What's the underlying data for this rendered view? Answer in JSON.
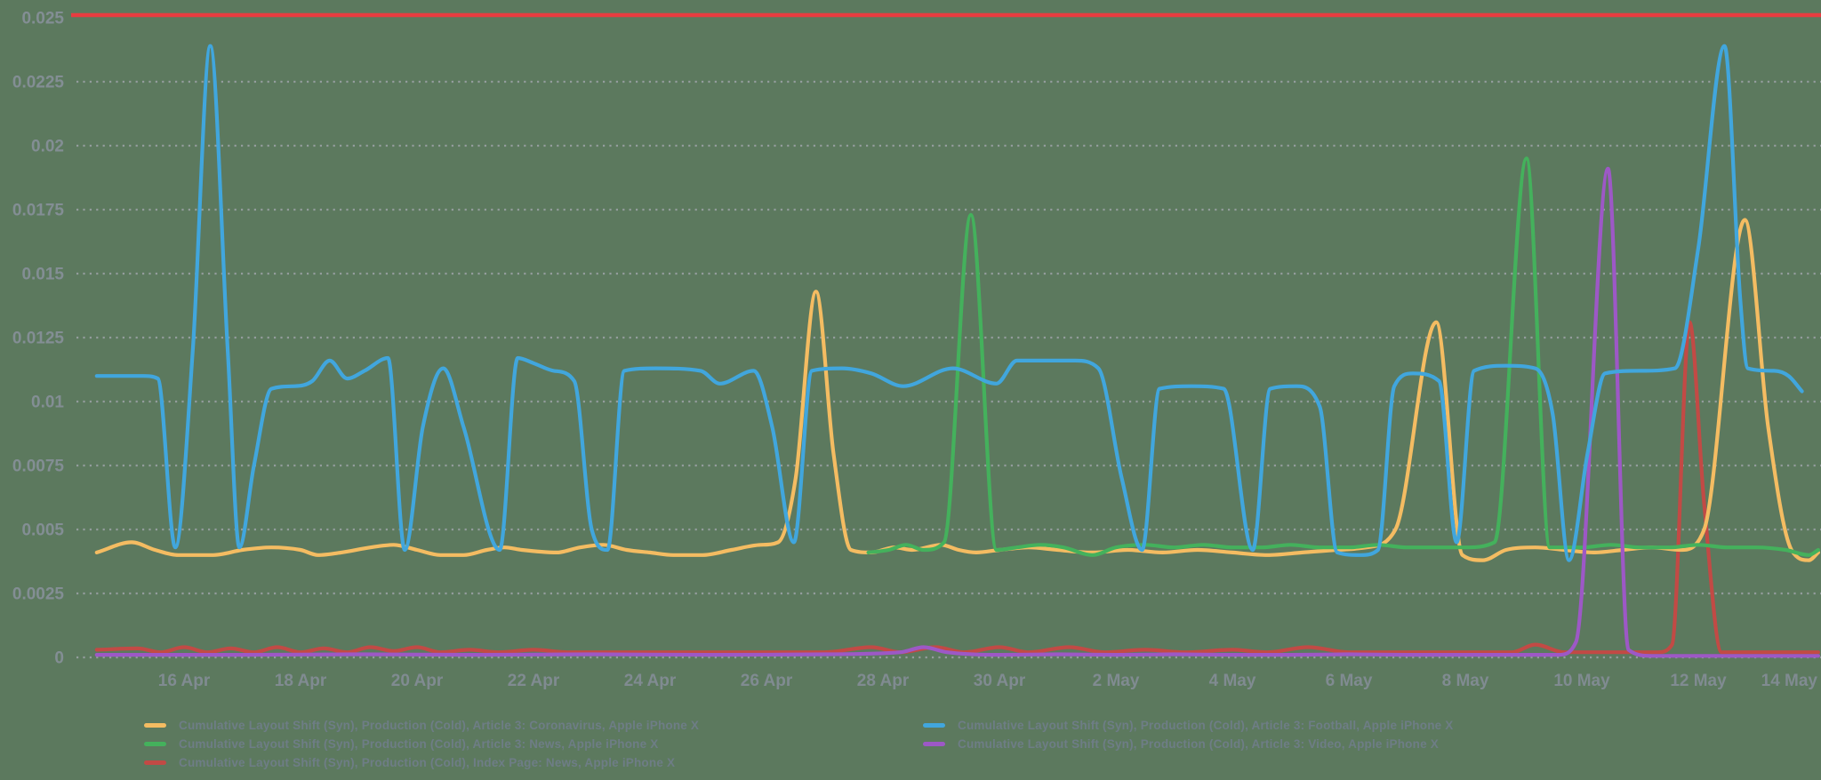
{
  "page": {
    "background_color": "#5c795e",
    "grid_color": "#9aa0a3",
    "axis_label_color": "#828d93",
    "legend_text_color": "#6e7d86"
  },
  "chart_data": {
    "type": "line",
    "title": "",
    "xlabel": "",
    "ylabel": "",
    "grid": "dotted-horizontal",
    "legend_position": "bottom-two-columns",
    "x_unit": "days since 15 Apr",
    "x_domain": [
      -0.55,
      29.1
    ],
    "x_ticks": [
      {
        "day": 1,
        "label": "16 Apr"
      },
      {
        "day": 3,
        "label": "18 Apr"
      },
      {
        "day": 5,
        "label": "20 Apr"
      },
      {
        "day": 7,
        "label": "22 Apr"
      },
      {
        "day": 9,
        "label": "24 Apr"
      },
      {
        "day": 11,
        "label": "26 Apr"
      },
      {
        "day": 13,
        "label": "28 Apr"
      },
      {
        "day": 15,
        "label": "30 Apr"
      },
      {
        "day": 17,
        "label": "2 May"
      },
      {
        "day": 19,
        "label": "4 May"
      },
      {
        "day": 21,
        "label": "6 May"
      },
      {
        "day": 23,
        "label": "8 May"
      },
      {
        "day": 25,
        "label": "10 May"
      },
      {
        "day": 27,
        "label": "12 May"
      },
      {
        "day": 29,
        "label": "14 May"
      }
    ],
    "ylim": [
      0,
      0.025
    ],
    "y_ticks": [
      {
        "value": 0,
        "label": "0"
      },
      {
        "value": 0.0025,
        "label": "0.0025"
      },
      {
        "value": 0.005,
        "label": "0.005"
      },
      {
        "value": 0.0075,
        "label": "0.0075"
      },
      {
        "value": 0.01,
        "label": "0.01"
      },
      {
        "value": 0.0125,
        "label": "0.0125"
      },
      {
        "value": 0.015,
        "label": "0.015"
      },
      {
        "value": 0.0175,
        "label": "0.0175"
      },
      {
        "value": 0.02,
        "label": "0.02"
      },
      {
        "value": 0.0225,
        "label": "0.0225"
      },
      {
        "value": 0.025,
        "label": "0.025"
      }
    ],
    "budget_line": {
      "value": 0.025,
      "color": "#e93c40",
      "style": "solid"
    },
    "draw_order": [
      4,
      0,
      2,
      3,
      1
    ],
    "series": [
      {
        "name": "Cumulative Layout Shift (Syn), Production (Cold), Article 3: Coronavirus, Apple iPhone X",
        "color": "#f4bc62",
        "points": [
          [
            -0.5,
            0.0041
          ],
          [
            0.1,
            0.0045
          ],
          [
            0.5,
            0.0042
          ],
          [
            0.9,
            0.004
          ],
          [
            1.5,
            0.004
          ],
          [
            2.0,
            0.0042
          ],
          [
            2.5,
            0.0043
          ],
          [
            3.0,
            0.0042
          ],
          [
            3.3,
            0.004
          ],
          [
            3.7,
            0.0041
          ],
          [
            4.2,
            0.0043
          ],
          [
            4.6,
            0.0044
          ],
          [
            5.0,
            0.0042
          ],
          [
            5.4,
            0.004
          ],
          [
            5.8,
            0.004
          ],
          [
            6.2,
            0.0042
          ],
          [
            6.5,
            0.0043
          ],
          [
            6.8,
            0.0042
          ],
          [
            7.4,
            0.0041
          ],
          [
            7.8,
            0.0043
          ],
          [
            8.2,
            0.0044
          ],
          [
            8.6,
            0.0042
          ],
          [
            9.0,
            0.0041
          ],
          [
            9.4,
            0.004
          ],
          [
            9.9,
            0.004
          ],
          [
            10.4,
            0.0042
          ],
          [
            10.9,
            0.0044
          ],
          [
            11.2,
            0.0045
          ],
          [
            11.5,
            0.007
          ],
          [
            11.85,
            0.0143
          ],
          [
            12.15,
            0.008
          ],
          [
            12.45,
            0.0042
          ],
          [
            12.8,
            0.0041
          ],
          [
            13.2,
            0.0043
          ],
          [
            13.5,
            0.0042
          ],
          [
            14.0,
            0.0044
          ],
          [
            14.3,
            0.0042
          ],
          [
            14.6,
            0.0041
          ],
          [
            15.0,
            0.0042
          ],
          [
            15.5,
            0.0043
          ],
          [
            16.0,
            0.0042
          ],
          [
            16.6,
            0.0041
          ],
          [
            17.2,
            0.0042
          ],
          [
            17.8,
            0.0041
          ],
          [
            18.4,
            0.0042
          ],
          [
            19.0,
            0.0041
          ],
          [
            19.6,
            0.004
          ],
          [
            20.2,
            0.0041
          ],
          [
            20.8,
            0.0042
          ],
          [
            21.3,
            0.0043
          ],
          [
            21.8,
            0.005
          ],
          [
            22.5,
            0.0131
          ],
          [
            22.95,
            0.004
          ],
          [
            23.3,
            0.0038
          ],
          [
            23.7,
            0.0042
          ],
          [
            24.2,
            0.0043
          ],
          [
            24.7,
            0.0042
          ],
          [
            25.2,
            0.0041
          ],
          [
            25.7,
            0.0042
          ],
          [
            26.2,
            0.0043
          ],
          [
            26.7,
            0.0042
          ],
          [
            27.1,
            0.005
          ],
          [
            27.8,
            0.0171
          ],
          [
            28.2,
            0.009
          ],
          [
            28.6,
            0.0042
          ],
          [
            28.9,
            0.0038
          ],
          [
            29.06,
            0.0041
          ]
        ]
      },
      {
        "name": "Cumulative Layout Shift (Syn), Production (Cold), Article 3: Football, Apple iPhone X",
        "color": "#41a6dd",
        "points": [
          [
            -0.5,
            0.011
          ],
          [
            0.3,
            0.011
          ],
          [
            0.55,
            0.0109
          ],
          [
            0.85,
            0.0043
          ],
          [
            1.15,
            0.012
          ],
          [
            1.45,
            0.0239
          ],
          [
            1.75,
            0.012
          ],
          [
            1.95,
            0.0043
          ],
          [
            2.2,
            0.0075
          ],
          [
            2.5,
            0.0105
          ],
          [
            2.9,
            0.0106
          ],
          [
            3.2,
            0.0108
          ],
          [
            3.5,
            0.0116
          ],
          [
            3.8,
            0.0109
          ],
          [
            4.1,
            0.0112
          ],
          [
            4.5,
            0.0117
          ],
          [
            4.79,
            0.0042
          ],
          [
            5.1,
            0.009
          ],
          [
            5.45,
            0.0113
          ],
          [
            5.8,
            0.009
          ],
          [
            6.42,
            0.0042
          ],
          [
            6.73,
            0.0117
          ],
          [
            7.0,
            0.0115
          ],
          [
            7.35,
            0.0112
          ],
          [
            7.7,
            0.0108
          ],
          [
            8.0,
            0.005
          ],
          [
            8.27,
            0.0042
          ],
          [
            8.56,
            0.0112
          ],
          [
            9.1,
            0.0113
          ],
          [
            9.87,
            0.0112
          ],
          [
            10.2,
            0.0107
          ],
          [
            10.78,
            0.0112
          ],
          [
            11.1,
            0.009
          ],
          [
            11.47,
            0.0045
          ],
          [
            11.78,
            0.0112
          ],
          [
            12.3,
            0.0113
          ],
          [
            12.8,
            0.0111
          ],
          [
            13.35,
            0.0106
          ],
          [
            14.2,
            0.0113
          ],
          [
            14.95,
            0.0107
          ],
          [
            15.3,
            0.0116
          ],
          [
            16.3,
            0.0116
          ],
          [
            16.7,
            0.0113
          ],
          [
            17.1,
            0.007
          ],
          [
            17.45,
            0.0042
          ],
          [
            17.75,
            0.0105
          ],
          [
            18.3,
            0.0106
          ],
          [
            18.85,
            0.0105
          ],
          [
            19.35,
            0.0042
          ],
          [
            19.65,
            0.0105
          ],
          [
            20.1,
            0.0106
          ],
          [
            20.5,
            0.0098
          ],
          [
            20.8,
            0.0041
          ],
          [
            21.2,
            0.004
          ],
          [
            21.5,
            0.0042
          ],
          [
            21.78,
            0.0106
          ],
          [
            22.1,
            0.0111
          ],
          [
            22.55,
            0.0108
          ],
          [
            22.85,
            0.0045
          ],
          [
            23.15,
            0.0112
          ],
          [
            23.7,
            0.0114
          ],
          [
            24.2,
            0.0113
          ],
          [
            24.5,
            0.0095
          ],
          [
            24.78,
            0.0038
          ],
          [
            25.1,
            0.008
          ],
          [
            25.4,
            0.0111
          ],
          [
            26.0,
            0.0112
          ],
          [
            26.6,
            0.0113
          ],
          [
            27.0,
            0.016
          ],
          [
            27.45,
            0.0239
          ],
          [
            27.72,
            0.014
          ],
          [
            27.85,
            0.0113
          ],
          [
            28.3,
            0.0112
          ],
          [
            28.55,
            0.011
          ],
          [
            28.78,
            0.0104
          ]
        ]
      },
      {
        "name": "Cumulative Layout Shift (Syn), Production (Cold), Article 3: News, Apple iPhone X",
        "color": "#44b15c",
        "points": [
          [
            12.75,
            0.0041
          ],
          [
            13.1,
            0.0042
          ],
          [
            13.4,
            0.0044
          ],
          [
            13.7,
            0.0042
          ],
          [
            14.05,
            0.0045
          ],
          [
            14.51,
            0.0173
          ],
          [
            14.95,
            0.0042
          ],
          [
            15.3,
            0.0043
          ],
          [
            15.7,
            0.0044
          ],
          [
            16.1,
            0.0043
          ],
          [
            16.6,
            0.004
          ],
          [
            17.0,
            0.0043
          ],
          [
            17.5,
            0.0044
          ],
          [
            18.0,
            0.0043
          ],
          [
            18.5,
            0.0044
          ],
          [
            19.0,
            0.0043
          ],
          [
            19.5,
            0.0043
          ],
          [
            20.0,
            0.0044
          ],
          [
            20.5,
            0.0043
          ],
          [
            21.0,
            0.0043
          ],
          [
            21.5,
            0.0044
          ],
          [
            22.0,
            0.0043
          ],
          [
            22.5,
            0.0043
          ],
          [
            23.0,
            0.0043
          ],
          [
            23.5,
            0.0045
          ],
          [
            24.05,
            0.0195
          ],
          [
            24.45,
            0.0043
          ],
          [
            25.0,
            0.0043
          ],
          [
            25.5,
            0.0044
          ],
          [
            26.0,
            0.0043
          ],
          [
            26.5,
            0.0043
          ],
          [
            27.0,
            0.0044
          ],
          [
            27.5,
            0.0043
          ],
          [
            28.0,
            0.0043
          ],
          [
            28.5,
            0.0042
          ],
          [
            28.9,
            0.004
          ],
          [
            29.06,
            0.0042
          ]
        ]
      },
      {
        "name": "Cumulative Layout Shift (Syn), Production (Cold), Article 3: Video, Apple iPhone X",
        "color": "#9d58c6",
        "points": [
          [
            -0.5,
            0.0001
          ],
          [
            2,
            0.0001
          ],
          [
            4,
            0.00012
          ],
          [
            6,
            0.0001
          ],
          [
            8,
            0.00012
          ],
          [
            10,
            0.0001
          ],
          [
            12,
            0.00012
          ],
          [
            13.3,
            0.0002
          ],
          [
            13.7,
            0.0004
          ],
          [
            14.1,
            0.0002
          ],
          [
            15,
            0.0001
          ],
          [
            16,
            0.00012
          ],
          [
            17,
            0.0001
          ],
          [
            18,
            0.00012
          ],
          [
            19,
            0.0001
          ],
          [
            20,
            0.0001
          ],
          [
            21,
            0.00012
          ],
          [
            22,
            0.0001
          ],
          [
            23,
            0.0001
          ],
          [
            24,
            0.0001
          ],
          [
            24.6,
            0.0001
          ],
          [
            24.9,
            0.0006
          ],
          [
            25.45,
            0.0191
          ],
          [
            25.8,
            0.0003
          ],
          [
            26.2,
            6e-05
          ],
          [
            27,
            6e-05
          ],
          [
            28,
            6e-05
          ],
          [
            29.06,
            6e-05
          ]
        ]
      },
      {
        "name": "Cumulative Layout Shift (Syn), Production (Cold), Index Page: News, Apple iPhone X",
        "color": "#c24a45",
        "points": [
          [
            -0.5,
            0.0003
          ],
          [
            0.2,
            0.00035
          ],
          [
            0.6,
            0.0002
          ],
          [
            1.0,
            0.0004
          ],
          [
            1.4,
            0.0002
          ],
          [
            1.8,
            0.00035
          ],
          [
            2.2,
            0.0002
          ],
          [
            2.6,
            0.0004
          ],
          [
            3.0,
            0.0002
          ],
          [
            3.4,
            0.00035
          ],
          [
            3.8,
            0.0002
          ],
          [
            4.2,
            0.0004
          ],
          [
            4.6,
            0.00025
          ],
          [
            5.0,
            0.0004
          ],
          [
            5.4,
            0.0002
          ],
          [
            5.9,
            0.0003
          ],
          [
            6.4,
            0.0002
          ],
          [
            7.0,
            0.0003
          ],
          [
            7.6,
            0.0002
          ],
          [
            8.4,
            0.0002
          ],
          [
            9.2,
            0.0002
          ],
          [
            10.0,
            0.0002
          ],
          [
            11.0,
            0.0002
          ],
          [
            12.0,
            0.0002
          ],
          [
            12.8,
            0.0004
          ],
          [
            13.3,
            0.0002
          ],
          [
            13.9,
            0.0004
          ],
          [
            14.4,
            0.0002
          ],
          [
            15.0,
            0.0004
          ],
          [
            15.5,
            0.0002
          ],
          [
            16.2,
            0.0004
          ],
          [
            16.8,
            0.0002
          ],
          [
            17.5,
            0.0003
          ],
          [
            18.2,
            0.0002
          ],
          [
            19.0,
            0.0003
          ],
          [
            19.6,
            0.0002
          ],
          [
            20.3,
            0.0004
          ],
          [
            21.0,
            0.0002
          ],
          [
            22.0,
            0.0002
          ],
          [
            23.0,
            0.0002
          ],
          [
            23.8,
            0.0002
          ],
          [
            24.2,
            0.0005
          ],
          [
            24.7,
            0.0002
          ],
          [
            25.5,
            0.0002
          ],
          [
            26.3,
            0.0002
          ],
          [
            26.55,
            0.0005
          ],
          [
            26.85,
            0.0131
          ],
          [
            27.1,
            0.006
          ],
          [
            27.4,
            0.0002
          ],
          [
            28.0,
            0.0002
          ],
          [
            28.6,
            0.0002
          ],
          [
            29.06,
            0.0002
          ]
        ]
      }
    ],
    "legend_columns": [
      [
        0,
        2,
        4
      ],
      [
        1,
        3
      ]
    ]
  }
}
